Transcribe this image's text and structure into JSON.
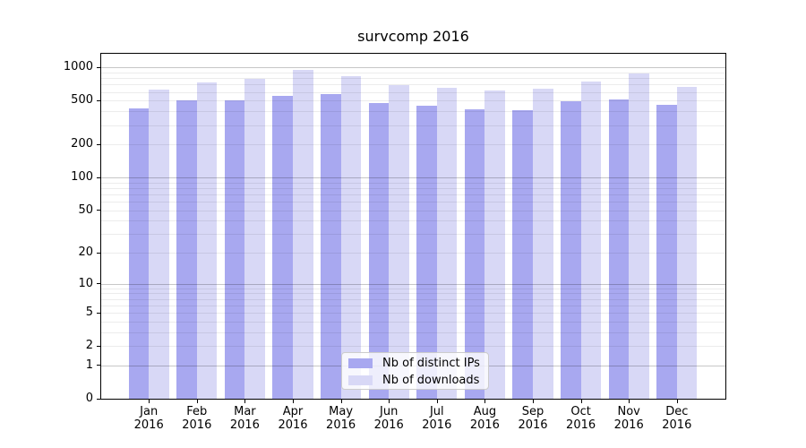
{
  "title": "survcomp 2016",
  "chart_data": {
    "type": "bar",
    "title": "survcomp 2016",
    "months": [
      "Jan",
      "Feb",
      "Mar",
      "Apr",
      "May",
      "Jun",
      "Jul",
      "Aug",
      "Sep",
      "Oct",
      "Nov",
      "Dec"
    ],
    "year": "2016",
    "series": [
      {
        "name": "Nb of distinct IPs",
        "color": "#a8a8f0",
        "values": [
          428,
          501,
          507,
          556,
          574,
          476,
          450,
          418,
          408,
          491,
          517,
          456
        ]
      },
      {
        "name": "Nb of downloads",
        "color": "#d8d8f6",
        "values": [
          630,
          732,
          790,
          946,
          835,
          689,
          654,
          623,
          639,
          746,
          882,
          670
        ]
      }
    ],
    "yscale": "log1p",
    "ytick_labels": [
      "0",
      "1",
      "2",
      "5",
      "10",
      "20",
      "50",
      "100",
      "200",
      "500",
      "1000"
    ],
    "ytick_values": [
      0,
      1,
      2,
      5,
      10,
      20,
      50,
      100,
      200,
      500,
      1000
    ],
    "ylim": [
      0,
      1330
    ],
    "grid": "horizontal, log minor + decade major, drawn over bars",
    "legend_position": "lower center",
    "xlabel": "",
    "ylabel": ""
  }
}
